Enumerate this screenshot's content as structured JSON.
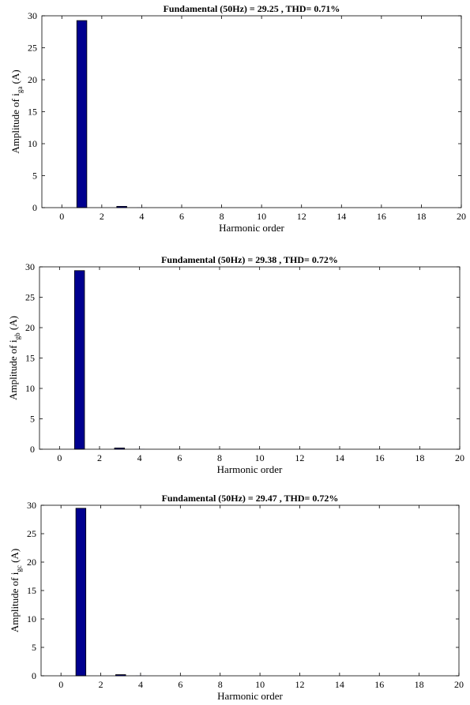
{
  "colors": {
    "bar": "#00008f",
    "axis": "#000000",
    "background": "#ffffff"
  },
  "chart_data": [
    {
      "type": "bar",
      "title": "Fundamental (50Hz) = 29.25 , THD= 0.71%",
      "xlabel": "Harmonic order",
      "ylabel_prefix": "Amplitude of i",
      "ylabel_sub": "ga",
      "ylabel_suffix": "(A)",
      "xlim": [
        -1,
        20
      ],
      "ylim": [
        0,
        30
      ],
      "xticks": [
        0,
        2,
        4,
        6,
        8,
        10,
        12,
        14,
        16,
        18,
        20
      ],
      "yticks": [
        0,
        5,
        10,
        15,
        20,
        25,
        30
      ],
      "x": [
        0,
        1,
        2,
        3,
        4,
        5,
        6,
        7,
        8,
        9,
        10,
        11,
        12,
        13,
        14,
        15,
        16,
        17,
        18,
        19
      ],
      "values": [
        0,
        29.25,
        0,
        0.2,
        0.02,
        0,
        0,
        0,
        0,
        0,
        0,
        0,
        0,
        0,
        0,
        0,
        0,
        0,
        0,
        0
      ]
    },
    {
      "type": "bar",
      "title": "Fundamental (50Hz) = 29.38 , THD= 0.72%",
      "xlabel": "Harmonic order",
      "ylabel_prefix": "Amplitude of i",
      "ylabel_sub": "gb",
      "ylabel_suffix": "(A)",
      "xlim": [
        -1,
        20
      ],
      "ylim": [
        0,
        30
      ],
      "xticks": [
        0,
        2,
        4,
        6,
        8,
        10,
        12,
        14,
        16,
        18,
        20
      ],
      "yticks": [
        0,
        5,
        10,
        15,
        20,
        25,
        30
      ],
      "x": [
        0,
        1,
        2,
        3,
        4,
        5,
        6,
        7,
        8,
        9,
        10,
        11,
        12,
        13,
        14,
        15,
        16,
        17,
        18,
        19
      ],
      "values": [
        0,
        29.38,
        0,
        0.2,
        0.02,
        0,
        0,
        0,
        0,
        0,
        0,
        0,
        0,
        0,
        0,
        0,
        0,
        0,
        0,
        0
      ]
    },
    {
      "type": "bar",
      "title": "Fundamental (50Hz) = 29.47 , THD= 0.72%",
      "xlabel": "Harmonic order",
      "ylabel_prefix": "Amplitude of i",
      "ylabel_sub": "gc",
      "ylabel_suffix": "(A)",
      "xlim": [
        -1,
        20
      ],
      "ylim": [
        0,
        30
      ],
      "xticks": [
        0,
        2,
        4,
        6,
        8,
        10,
        12,
        14,
        16,
        18,
        20
      ],
      "yticks": [
        0,
        5,
        10,
        15,
        20,
        25,
        30
      ],
      "x": [
        0,
        1,
        2,
        3,
        4,
        5,
        6,
        7,
        8,
        9,
        10,
        11,
        12,
        13,
        14,
        15,
        16,
        17,
        18,
        19
      ],
      "values": [
        0,
        29.47,
        0,
        0.2,
        0.02,
        0,
        0,
        0,
        0,
        0,
        0,
        0,
        0,
        0,
        0,
        0,
        0,
        0,
        0,
        0
      ]
    }
  ]
}
